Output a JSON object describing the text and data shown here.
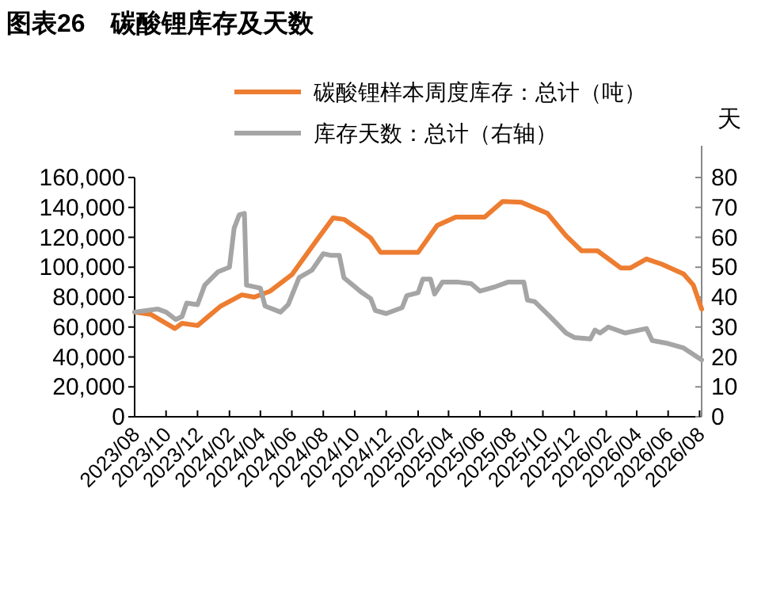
{
  "chart_data": {
    "type": "line",
    "title": "图表26　碳酸锂库存及天数",
    "y2label": "天",
    "legend": "top",
    "grid": false,
    "marker": "none",
    "line_style": "solid",
    "xlim": [
      "2023-08",
      "2026-08-05"
    ],
    "xticks": [
      {
        "value": "2023-08",
        "label": "2023/08"
      },
      {
        "value": "2023-10",
        "label": "2023/10"
      },
      {
        "value": "2023-12",
        "label": "2023/12"
      },
      {
        "value": "2024-02",
        "label": "2024/02"
      },
      {
        "value": "2024-04",
        "label": "2024/04"
      },
      {
        "value": "2024-06",
        "label": "2024/06"
      },
      {
        "value": "2024-08",
        "label": "2024/08"
      },
      {
        "value": "2024-10",
        "label": "2024/10"
      },
      {
        "value": "2024-12",
        "label": "2024/12"
      },
      {
        "value": "2025-02",
        "label": "2025/02"
      },
      {
        "value": "2025-04",
        "label": "2025/04"
      },
      {
        "value": "2025-06",
        "label": "2025/06"
      },
      {
        "value": "2025-08",
        "label": "2025/08"
      },
      {
        "value": "2025-10",
        "label": "2025/10"
      },
      {
        "value": "2025-12",
        "label": "2025/12"
      },
      {
        "value": "2026-02",
        "label": "2026/02"
      },
      {
        "value": "2026-04",
        "label": "2026/04"
      },
      {
        "value": "2026-06",
        "label": "2026/06"
      },
      {
        "value": "2026-08",
        "label": "2026/08"
      }
    ],
    "ylim": [
      0,
      160000
    ],
    "yticks": [
      0,
      {
        "value": 20000,
        "label": "20,000"
      },
      {
        "value": 40000,
        "label": "40,000"
      },
      {
        "value": 60000,
        "label": "60,000"
      },
      {
        "value": 80000,
        "label": "80,000"
      },
      {
        "value": 100000,
        "label": "100,000"
      },
      {
        "value": 120000,
        "label": "120,000"
      },
      {
        "value": 140000,
        "label": "140,000"
      },
      {
        "value": 160000,
        "label": "160,000"
      }
    ],
    "y2lim": [
      0,
      80
    ],
    "y2ticks": [
      0,
      10,
      20,
      30,
      40,
      50,
      60,
      70,
      80
    ],
    "series": [
      {
        "name": "碳酸锂样本周度库存：总计（吨）",
        "color": "#ed7d31",
        "x": [
          "2023-08-01",
          "2023-09-01",
          "2023-10-18",
          "2023-11-01",
          "2023-12-01",
          "2024-01-15",
          "2024-02-25",
          "2024-03-20",
          "2024-04-20",
          "2024-06-01",
          "2024-07-15",
          "2024-08-20",
          "2024-09-10",
          "2024-10-10",
          "2024-11-01",
          "2024-11-20",
          "2025-02-01",
          "2025-03-10",
          "2025-04-15",
          "2025-06-10",
          "2025-07-15",
          "2025-08-20",
          "2025-10-10",
          "2025-11-15",
          "2025-12-15",
          "2026-01-15",
          "2026-03-01",
          "2026-03-20",
          "2026-04-20",
          "2026-05-20",
          "2026-07-01",
          "2026-07-20",
          "2026-08-05"
        ],
        "values": [
          70000,
          68500,
          59000,
          62500,
          61000,
          74000,
          81500,
          80000,
          84000,
          95000,
          116000,
          133000,
          132000,
          125000,
          119500,
          110000,
          110000,
          128000,
          133500,
          133500,
          144000,
          143500,
          136000,
          121000,
          111000,
          111000,
          99500,
          99500,
          105500,
          102000,
          95500,
          88000,
          72000
        ]
      },
      {
        "name": "库存天数：总计（右轴）",
        "color": "#a5a5a5",
        "axis": "y2",
        "x": [
          "2023-08-01",
          "2023-09-15",
          "2023-10-01",
          "2023-10-20",
          "2023-11-01",
          "2023-11-10",
          "2023-12-01",
          "2023-12-15",
          "2024-01-10",
          "2024-02-01",
          "2024-02-10",
          "2024-02-20",
          "2024-03-01",
          "2024-03-05",
          "2024-04-01",
          "2024-04-10",
          "2024-05-10",
          "2024-05-25",
          "2024-06-15",
          "2024-07-10",
          "2024-08-01",
          "2024-08-15",
          "2024-09-01",
          "2024-09-10",
          "2024-10-15",
          "2024-11-01",
          "2024-11-10",
          "2024-12-01",
          "2025-01-01",
          "2025-01-10",
          "2025-02-01",
          "2025-02-10",
          "2025-02-25",
          "2025-03-05",
          "2025-03-20",
          "2025-04-20",
          "2025-05-15",
          "2025-06-01",
          "2025-07-01",
          "2025-07-25",
          "2025-08-25",
          "2025-09-01",
          "2025-09-15",
          "2025-10-15",
          "2025-11-15",
          "2025-12-01",
          "2026-01-01",
          "2026-01-10",
          "2026-01-20",
          "2026-02-05",
          "2026-03-10",
          "2026-04-20",
          "2026-05-01",
          "2026-06-01",
          "2026-07-01",
          "2026-08-05"
        ],
        "values": [
          35,
          36,
          35,
          32.5,
          33.5,
          38,
          37.5,
          44,
          48.5,
          50,
          63,
          67.5,
          68,
          44,
          43,
          37,
          35,
          37.5,
          46.5,
          49,
          54.5,
          54,
          54,
          46.5,
          41.5,
          39.5,
          35.5,
          34.5,
          36.5,
          40.5,
          41.5,
          46,
          46,
          41,
          45,
          45,
          44.5,
          42,
          43.5,
          45,
          45,
          39,
          38.5,
          33.5,
          28,
          26.5,
          26,
          29,
          28,
          30,
          28,
          29.5,
          25.5,
          24.5,
          23,
          19
        ]
      }
    ]
  }
}
